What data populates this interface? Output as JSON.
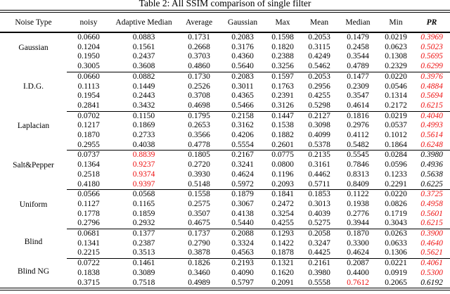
{
  "caption": "Table 2: All SSIM comparison of single filter",
  "colors": {
    "highlight_red": "#ee1111",
    "text": "#000000"
  },
  "columns": [
    "Noise Type",
    "noisy",
    "Adaptive Median",
    "Average",
    "Gaussian",
    "Max",
    "Mean",
    "Median",
    "Min",
    "PR"
  ],
  "groups": [
    {
      "label": "Gaussian",
      "rows": [
        [
          "0.0660",
          "0.0883",
          "0.1731",
          "0.2083",
          "0.1598",
          "0.2053",
          "0.1479",
          "0.0219",
          "0.3969"
        ],
        [
          "0.1204",
          "0.1561",
          "0.2668",
          "0.3176",
          "0.1820",
          "0.3115",
          "0.2458",
          "0.0623",
          "0.5023"
        ],
        [
          "0.1950",
          "0.2437",
          "0.3703",
          "0.4360",
          "0.2388",
          "0.4249",
          "0.3544",
          "0.1308",
          "0.5695"
        ],
        [
          "0.3005",
          "0.3608",
          "0.4860",
          "0.5640",
          "0.3256",
          "0.5462",
          "0.4789",
          "0.2329",
          "0.6299"
        ]
      ]
    },
    {
      "label": "I.D.G.",
      "rows": [
        [
          "0.0660",
          "0.0882",
          "0.1730",
          "0.2083",
          "0.1597",
          "0.2053",
          "0.1477",
          "0.0220",
          "0.3976"
        ],
        [
          "0.1113",
          "0.1449",
          "0.2526",
          "0.3011",
          "0.1763",
          "0.2956",
          "0.2309",
          "0.0546",
          "0.4884"
        ],
        [
          "0.1954",
          "0.2443",
          "0.3708",
          "0.4365",
          "0.2391",
          "0.4255",
          "0.3547",
          "0.1314",
          "0.5694"
        ],
        [
          "0.2841",
          "0.3432",
          "0.4698",
          "0.5466",
          "0.3126",
          "0.5298",
          "0.4614",
          "0.2172",
          "0.6215"
        ]
      ]
    },
    {
      "label": "Laplacian",
      "rows": [
        [
          "0.0702",
          "0.1150",
          "0.1795",
          "0.2158",
          "0.1447",
          "0.2127",
          "0.1816",
          "0.0219",
          "0.4040"
        ],
        [
          "0.1217",
          "0.1869",
          "0.2653",
          "0.3162",
          "0.1538",
          "0.3098",
          "0.2976",
          "0.0537",
          "0.4993"
        ],
        [
          "0.1870",
          "0.2733",
          "0.3566",
          "0.4206",
          "0.1882",
          "0.4099",
          "0.4112",
          "0.1012",
          "0.5614"
        ],
        [
          "0.2955",
          "0.4038",
          "0.4778",
          "0.5554",
          "0.2601",
          "0.5378",
          "0.5482",
          "0.1864",
          "0.6248"
        ]
      ]
    },
    {
      "label": "Salt&Pepper",
      "rows": [
        [
          "0.0737",
          "0.8839",
          "0.1805",
          "0.2167",
          "0.0775",
          "0.2135",
          "0.5545",
          "0.0284",
          "0.3980"
        ],
        [
          "0.1364",
          "0.9237",
          "0.2720",
          "0.3241",
          "0.0800",
          "0.3161",
          "0.7846",
          "0.0596",
          "0.4936"
        ],
        [
          "0.2518",
          "0.9374",
          "0.3930",
          "0.4624",
          "0.1196",
          "0.4462",
          "0.8313",
          "0.1233",
          "0.5638"
        ],
        [
          "0.4180",
          "0.9397",
          "0.5148",
          "0.5972",
          "0.2093",
          "0.5711",
          "0.8409",
          "0.2291",
          "0.6225"
        ]
      ]
    },
    {
      "label": "Uniform",
      "rows": [
        [
          "0.0566",
          "0.0568",
          "0.1558",
          "0.1879",
          "0.1841",
          "0.1853",
          "0.1122",
          "0.0220",
          "0.3725"
        ],
        [
          "0.1127",
          "0.1165",
          "0.2575",
          "0.3067",
          "0.2472",
          "0.3013",
          "0.1938",
          "0.0826",
          "0.4958"
        ],
        [
          "0.1778",
          "0.1859",
          "0.3507",
          "0.4138",
          "0.3254",
          "0.4039",
          "0.2776",
          "0.1719",
          "0.5601"
        ],
        [
          "0.2796",
          "0.2932",
          "0.4675",
          "0.5440",
          "0.4255",
          "0.5275",
          "0.3944",
          "0.3043",
          "0.6215"
        ]
      ]
    },
    {
      "label": "Blind",
      "rows": [
        [
          "0.0681",
          "0.1377",
          "0.1737",
          "0.2088",
          "0.1293",
          "0.2058",
          "0.1870",
          "0.0263",
          "0.3900"
        ],
        [
          "0.1341",
          "0.2387",
          "0.2790",
          "0.3324",
          "0.1422",
          "0.3247",
          "0.3300",
          "0.0633",
          "0.4640"
        ],
        [
          "0.2215",
          "0.3513",
          "0.3878",
          "0.4563",
          "0.1878",
          "0.4425",
          "0.4624",
          "0.1306",
          "0.5621"
        ]
      ]
    },
    {
      "label": "Blind NG",
      "rows": [
        [
          "0.0722",
          "0.1461",
          "0.1826",
          "0.2193",
          "0.1321",
          "0.2161",
          "0.2087",
          "0.0221",
          "0.4061"
        ],
        [
          "0.1838",
          "0.3089",
          "0.3460",
          "0.4090",
          "0.1620",
          "0.3980",
          "0.4400",
          "0.0919",
          "0.5300"
        ],
        [
          "0.3715",
          "0.7518",
          "0.4989",
          "0.5797",
          "0.2091",
          "0.5558",
          "0.7612",
          "0.2065",
          "0.6192"
        ]
      ]
    }
  ],
  "styling": {
    "italic_column": "PR",
    "red_cells": [
      {
        "group": 3,
        "row": 0,
        "col": 1
      },
      {
        "group": 3,
        "row": 1,
        "col": 1
      },
      {
        "group": 3,
        "row": 2,
        "col": 1
      },
      {
        "group": 3,
        "row": 3,
        "col": 1
      },
      {
        "group": 6,
        "row": 2,
        "col": 6
      }
    ],
    "black_pr_cells": [
      {
        "group": 3,
        "row": 0
      },
      {
        "group": 3,
        "row": 1
      },
      {
        "group": 3,
        "row": 2
      },
      {
        "group": 3,
        "row": 3
      },
      {
        "group": 6,
        "row": 2
      }
    ]
  }
}
